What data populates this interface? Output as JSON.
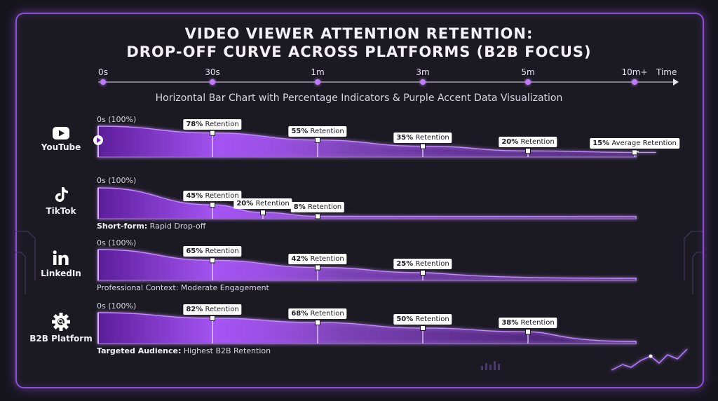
{
  "title_line1": "VIDEO VIEWER ATTENTION RETENTION:",
  "title_line2": "DROP-OFF CURVE ACROSS PLATFORMS (B2B FOCUS)",
  "subtitle": "Horizontal Bar Chart with Percentage Indicators & Purple Accent Data Visualization",
  "time_axis": {
    "ticks": [
      "0s",
      "30s",
      "1m",
      "3m",
      "5m",
      "10m+"
    ],
    "label": "Time"
  },
  "colors": {
    "accent": "#a855f7",
    "accent_dark": "#5b1d9a",
    "background": "#16151d",
    "frame": "#8c4fd6"
  },
  "rows": [
    {
      "platform": "YouTube",
      "icon": "youtube-play-icon",
      "start_label": "0s (100%)",
      "caption_bold": "",
      "caption_text": ""
    },
    {
      "platform": "TikTok",
      "icon": "tiktok-note-icon",
      "start_label": "0s (100%)",
      "caption_bold": "Short-form:",
      "caption_text": " Rapid Drop-off"
    },
    {
      "platform": "LinkedIn",
      "icon": "linkedin-icon",
      "start_label": "0s (100%)",
      "caption_bold": "",
      "caption_text": "Professional Context: Moderate Engagement"
    },
    {
      "platform": "B2B Platform",
      "icon": "gear-search-icon",
      "start_label": "0s (100%)",
      "caption_bold": "Targeted Audience:",
      "caption_text": " Highest B2B Retention"
    }
  ],
  "chart_data": {
    "type": "area",
    "title": "VIDEO VIEWER ATTENTION RETENTION: DROP-OFF CURVE ACROSS PLATFORMS (B2B FOCUS)",
    "subtitle": "Horizontal Bar Chart with Percentage Indicators & Purple Accent Data Visualization",
    "xlabel": "Time",
    "x_categories": [
      "0s",
      "30s",
      "1m",
      "3m",
      "5m",
      "10m+"
    ],
    "ylabel": "",
    "ylim": [
      0,
      100
    ],
    "series": [
      {
        "name": "YouTube",
        "points": [
          {
            "x": "0s",
            "y": 100,
            "label": "0s (100%)"
          },
          {
            "x": "30s",
            "y": 78,
            "label": "78% Retention"
          },
          {
            "x": "1m",
            "y": 55,
            "label": "55% Retention"
          },
          {
            "x": "3m",
            "y": 35,
            "label": "35% Retention"
          },
          {
            "x": "5m",
            "y": 20,
            "label": "20% Retention"
          },
          {
            "x": "10m+",
            "y": 15,
            "label": "15% Average Retention"
          }
        ]
      },
      {
        "name": "TikTok",
        "points": [
          {
            "x": "0s",
            "y": 100,
            "label": "0s (100%)"
          },
          {
            "x": "30s",
            "y": 45,
            "label": "45% Retention"
          },
          {
            "x": "~40s",
            "y": 20,
            "label": "20% Retention"
          },
          {
            "x": "1m",
            "y": 8,
            "label": "8% Retention"
          }
        ]
      },
      {
        "name": "LinkedIn",
        "points": [
          {
            "x": "0s",
            "y": 100,
            "label": "0s (100%)"
          },
          {
            "x": "30s",
            "y": 65,
            "label": "65% Retention"
          },
          {
            "x": "1m",
            "y": 42,
            "label": "42% Retention"
          },
          {
            "x": "3m",
            "y": 25,
            "label": "25% Retention"
          }
        ]
      },
      {
        "name": "B2B Platform",
        "points": [
          {
            "x": "0s",
            "y": 100,
            "label": "0s (100%)"
          },
          {
            "x": "30s",
            "y": 82,
            "label": "82% Retention"
          },
          {
            "x": "1m",
            "y": 68,
            "label": "68% Retention"
          },
          {
            "x": "3m",
            "y": 50,
            "label": "50% Retention"
          },
          {
            "x": "5m",
            "y": 38,
            "label": "38% Retention"
          }
        ]
      }
    ]
  }
}
